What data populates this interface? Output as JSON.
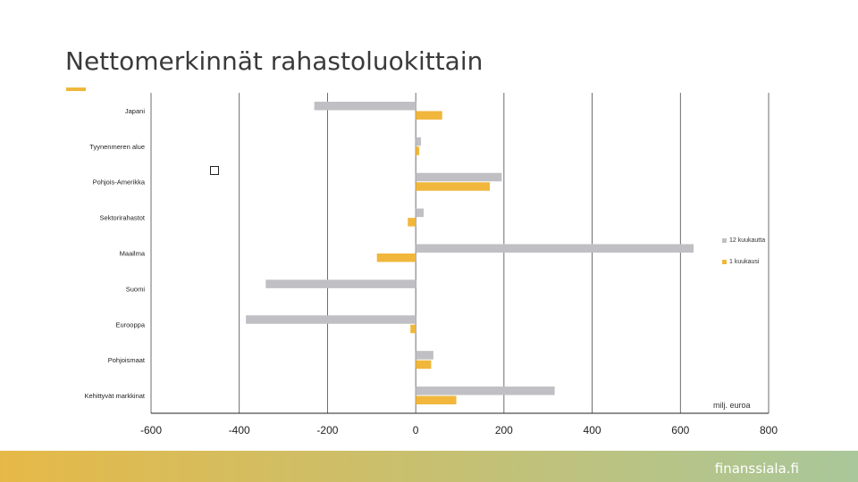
{
  "title": "Nettomerkinnät rahastoluokittain",
  "brand": "finanssiala.fi",
  "colors": {
    "accent": "#f0b73c",
    "series_12m": "#c0c0c4",
    "series_1m": "#f0b73c",
    "footer_left": "#e6b947",
    "footer_right": "#a9c79a"
  },
  "chart_data": {
    "type": "bar",
    "orientation": "horizontal",
    "unit": "milj. euroa",
    "categories": [
      "Japani",
      "Tyynenmeren alue",
      "Pohjois-Amerikka",
      "Sektorirahastot",
      "Maailma",
      "Suomi",
      "Eurooppa",
      "Pohjoismaat",
      "Kehittyvät markkinat"
    ],
    "series": [
      {
        "name": "12 kuukautta",
        "values": [
          -230,
          12,
          195,
          18,
          630,
          -340,
          -385,
          40,
          315
        ]
      },
      {
        "name": "1 kuukausi",
        "values": [
          60,
          8,
          168,
          -18,
          -88,
          0,
          -12,
          35,
          92
        ]
      }
    ],
    "xlim": [
      -600,
      800
    ],
    "xticks": [
      "-600",
      "-400",
      "-200",
      "0",
      "200",
      "400",
      "600",
      "800"
    ],
    "grid": true,
    "legend_position": "right"
  }
}
